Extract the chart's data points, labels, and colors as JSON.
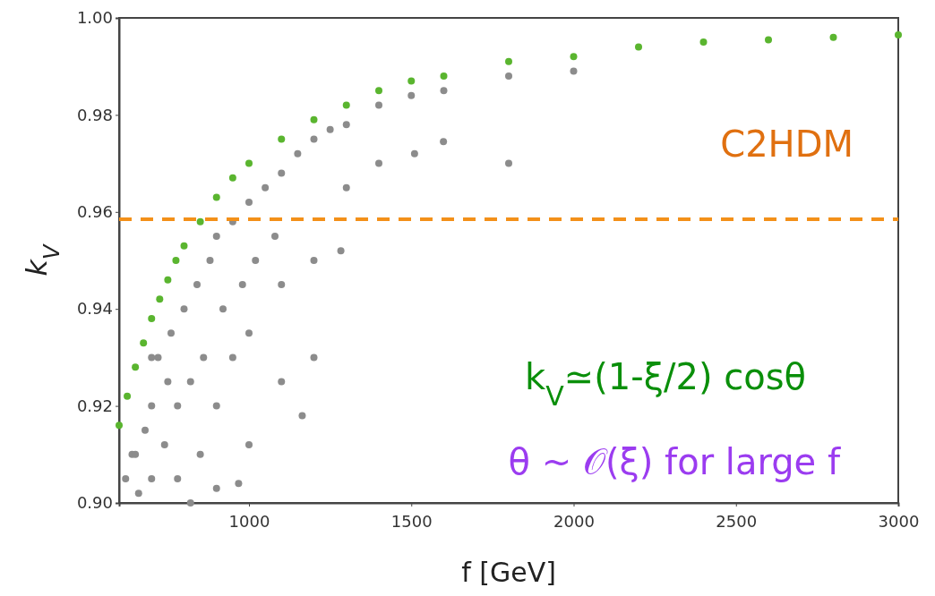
{
  "chart_data": {
    "type": "scatter",
    "xlabel": "f [GeV]",
    "ylabel": "k$_{V}$",
    "xlim": [
      600,
      3000
    ],
    "xticks": [
      1000,
      1500,
      2000,
      2500,
      3000
    ],
    "ylim": [
      0.9,
      1.0
    ],
    "yticks": [
      {
        "value": 0.9,
        "label": "0.90"
      },
      0.92,
      0.94,
      0.96,
      0.98,
      {
        "value": 1.0,
        "label": "1.00"
      }
    ],
    "marker": "circle",
    "ref_lines": [
      {
        "axis": "y",
        "value": 0.9585,
        "color": "#f39019",
        "line_style": "dashed"
      }
    ],
    "annotations": [
      "C2HDM",
      "k$_{V}$≃(1-ξ/2) cosθ",
      "θ ~ 𝒪(ξ) for large f"
    ],
    "series": [
      {
        "color": "#8c8c8c",
        "x": [
          620,
          640,
          660,
          680,
          700,
          700,
          720,
          740,
          760,
          780,
          800,
          820,
          840,
          860,
          880,
          900,
          920,
          950,
          980,
          1000,
          1020,
          1050,
          1080,
          1100,
          1150,
          1200,
          1250,
          1300,
          1400,
          1500,
          1600,
          1800,
          1800,
          2000,
          900,
          950,
          1000,
          1100,
          1200,
          780,
          850,
          1000,
          1300,
          1400,
          1100,
          1200,
          650,
          700,
          750,
          820,
          900,
          1510,
          1599,
          1283,
          1164,
          968
        ],
        "values": [
          0.905,
          0.91,
          0.902,
          0.915,
          0.92,
          0.905,
          0.93,
          0.912,
          0.935,
          0.92,
          0.94,
          0.925,
          0.945,
          0.93,
          0.95,
          0.955,
          0.94,
          0.958,
          0.945,
          0.962,
          0.95,
          0.965,
          0.955,
          0.968,
          0.972,
          0.975,
          0.977,
          0.978,
          0.982,
          0.984,
          0.985,
          0.988,
          0.97,
          0.989,
          0.92,
          0.93,
          0.935,
          0.945,
          0.95,
          0.905,
          0.91,
          0.912,
          0.965,
          0.97,
          0.925,
          0.93,
          0.91,
          0.93,
          0.925,
          0.9,
          0.903,
          0.972,
          0.9745,
          0.952,
          0.918,
          0.904
        ]
      },
      {
        "color": "#5ab52f",
        "x": [
          600,
          625,
          650,
          675,
          700,
          725,
          750,
          775,
          800,
          850,
          900,
          950,
          1000,
          1100,
          1200,
          1300,
          1400,
          1500,
          1600,
          1800,
          2000,
          2200,
          2400,
          2600,
          2800,
          3000
        ],
        "values": [
          0.916,
          0.922,
          0.928,
          0.933,
          0.938,
          0.942,
          0.946,
          0.95,
          0.953,
          0.958,
          0.963,
          0.967,
          0.97,
          0.975,
          0.979,
          0.982,
          0.985,
          0.987,
          0.988,
          0.991,
          0.992,
          0.994,
          0.995,
          0.9955,
          0.996,
          0.9965
        ]
      }
    ]
  }
}
